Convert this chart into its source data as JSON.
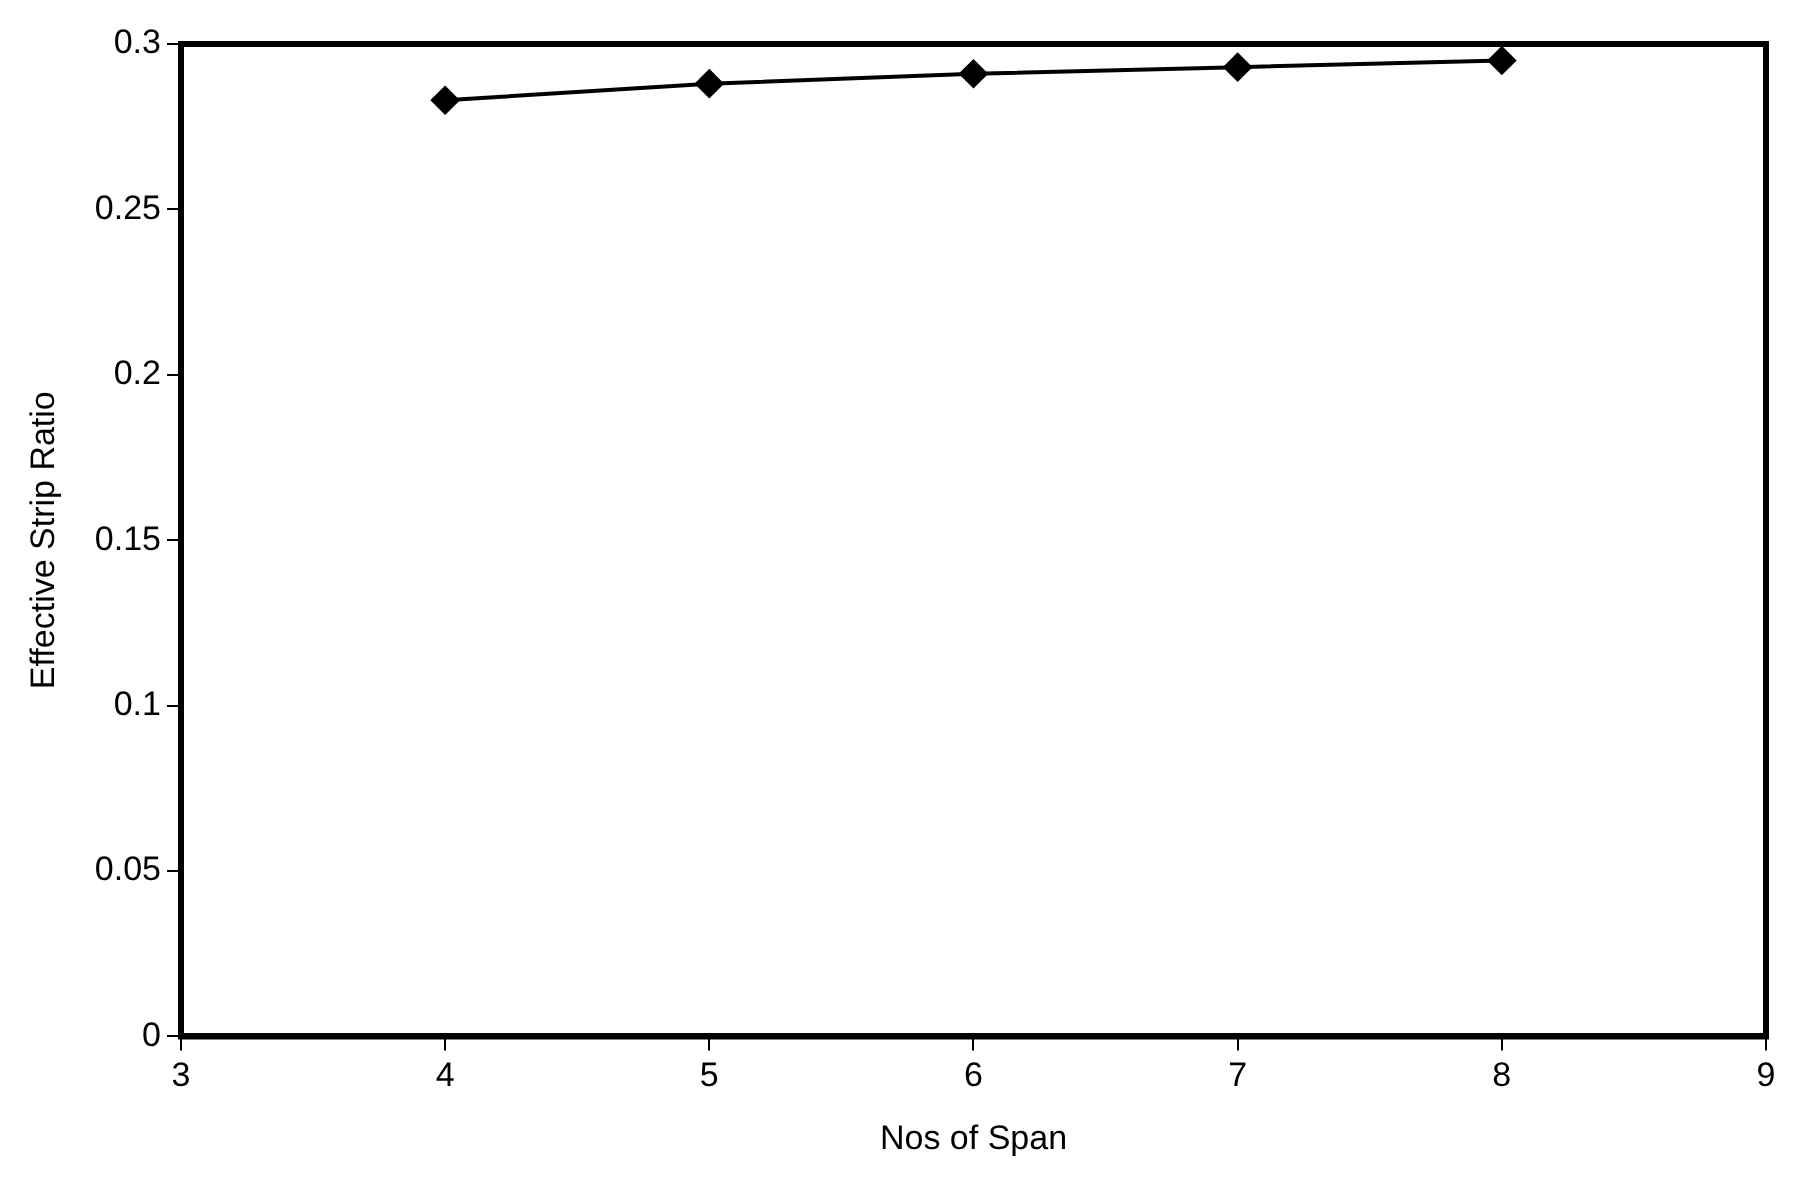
{
  "chart_data": {
    "type": "line",
    "xlabel": "Nos of Span",
    "ylabel": "Effective Strip Ratio",
    "x": [
      4,
      5,
      6,
      7,
      8
    ],
    "series": [
      {
        "color": "#000000",
        "values": [
          0.283,
          0.288,
          0.291,
          0.293,
          0.295
        ]
      }
    ],
    "xlim": [
      3,
      9
    ],
    "xticks": [
      3,
      4,
      5,
      6,
      7,
      8,
      9
    ],
    "ylim": [
      0,
      0.3
    ],
    "yticks": [
      0,
      0.05,
      0.1,
      0.15,
      0.2,
      0.25,
      0.3
    ],
    "grid": false,
    "legend": false,
    "marker": "diamond",
    "line_style": "solid"
  }
}
